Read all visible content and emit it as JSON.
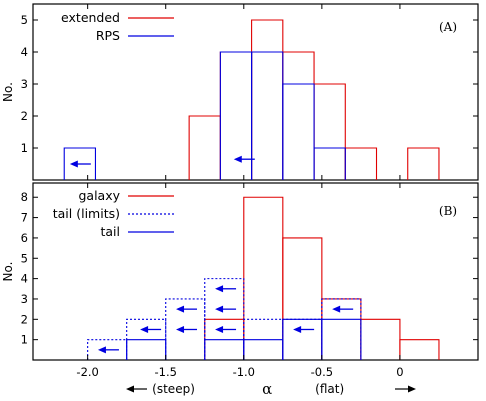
{
  "chart_data": [
    {
      "panel": "(A)",
      "type": "histogram",
      "ylabel": "No.",
      "xlim": [
        -2.35,
        0.5
      ],
      "ylim": [
        0,
        5.5
      ],
      "yticks": [
        1,
        2,
        3,
        4,
        5
      ],
      "series": [
        {
          "name": "extended",
          "color": "#e00000",
          "style": "solid",
          "bins": [
            {
              "x0": -1.35,
              "x1": -1.15,
              "y": 2
            },
            {
              "x0": -1.15,
              "x1": -0.95,
              "y": 4
            },
            {
              "x0": -0.95,
              "x1": -0.75,
              "y": 5
            },
            {
              "x0": -0.75,
              "x1": -0.55,
              "y": 4
            },
            {
              "x0": -0.55,
              "x1": -0.35,
              "y": 3
            },
            {
              "x0": -0.35,
              "x1": -0.15,
              "y": 1
            },
            {
              "x0": 0.05,
              "x1": 0.25,
              "y": 1
            }
          ]
        },
        {
          "name": "RPS",
          "color": "#0000e0",
          "style": "solid",
          "bins": [
            {
              "x0": -2.15,
              "x1": -1.95,
              "y": 1
            },
            {
              "x0": -1.15,
              "x1": -0.95,
              "y": 4
            },
            {
              "x0": -0.95,
              "x1": -0.75,
              "y": 4
            },
            {
              "x0": -0.75,
              "x1": -0.55,
              "y": 3
            },
            {
              "x0": -0.55,
              "x1": -0.35,
              "y": 1
            }
          ]
        }
      ],
      "upper_limit_arrows": [
        {
          "x": -2.05,
          "y": 0.5
        },
        {
          "x": -1.0,
          "y": 0.65
        }
      ]
    },
    {
      "panel": "(B)",
      "type": "histogram",
      "ylabel": "No.",
      "xlabel": "α",
      "xlabel_left": "(steep)",
      "xlabel_right": "(flat)",
      "xlim": [
        -2.35,
        0.5
      ],
      "ylim": [
        0,
        8.7
      ],
      "xticks": [
        -2.0,
        -1.5,
        -1.0,
        -0.5,
        0
      ],
      "xtick_labels": [
        "-2.0",
        "-1.5",
        "-1.0",
        "-0.5",
        "0"
      ],
      "yticks": [
        1,
        2,
        3,
        4,
        5,
        6,
        7,
        8
      ],
      "series": [
        {
          "name": "galaxy",
          "color": "#e00000",
          "style": "solid",
          "bins": [
            {
              "x0": -1.75,
              "x1": -1.5,
              "y": 0
            },
            {
              "x0": -1.25,
              "x1": -1.0,
              "y": 2
            },
            {
              "x0": -1.0,
              "x1": -0.75,
              "y": 8
            },
            {
              "x0": -0.75,
              "x1": -0.5,
              "y": 6
            },
            {
              "x0": -0.5,
              "x1": -0.25,
              "y": 3
            },
            {
              "x0": -0.25,
              "x1": 0.0,
              "y": 2
            },
            {
              "x0": 0.0,
              "x1": 0.25,
              "y": 1
            }
          ]
        },
        {
          "name": "tail (limits)",
          "color": "#0000e0",
          "style": "dotted",
          "bins": [
            {
              "x0": -2.0,
              "x1": -1.75,
              "y": 1
            },
            {
              "x0": -1.75,
              "x1": -1.5,
              "y": 2
            },
            {
              "x0": -1.5,
              "x1": -1.25,
              "y": 3
            },
            {
              "x0": -1.25,
              "x1": -1.0,
              "y": 4
            },
            {
              "x0": -1.0,
              "x1": -0.75,
              "y": 2
            },
            {
              "x0": -0.75,
              "x1": -0.5,
              "y": 2
            },
            {
              "x0": -0.5,
              "x1": -0.25,
              "y": 3
            }
          ]
        },
        {
          "name": "tail",
          "color": "#0000e0",
          "style": "solid",
          "bins": [
            {
              "x0": -1.75,
              "x1": -1.5,
              "y": 1
            },
            {
              "x0": -1.25,
              "x1": -1.0,
              "y": 1
            },
            {
              "x0": -1.0,
              "x1": -0.75,
              "y": 1
            },
            {
              "x0": -0.75,
              "x1": -0.5,
              "y": 2
            },
            {
              "x0": -0.5,
              "x1": -0.25,
              "y": 2
            }
          ]
        }
      ],
      "upper_limit_arrows": [
        {
          "x": -1.87,
          "y": 0.5
        },
        {
          "x": -1.6,
          "y": 1.5
        },
        {
          "x": -1.37,
          "y": 1.5
        },
        {
          "x": -1.37,
          "y": 2.5
        },
        {
          "x": -1.12,
          "y": 1.5
        },
        {
          "x": -1.12,
          "y": 2.5
        },
        {
          "x": -1.12,
          "y": 3.5
        },
        {
          "x": -0.62,
          "y": 1.5
        },
        {
          "x": -0.37,
          "y": 2.5
        }
      ]
    }
  ]
}
